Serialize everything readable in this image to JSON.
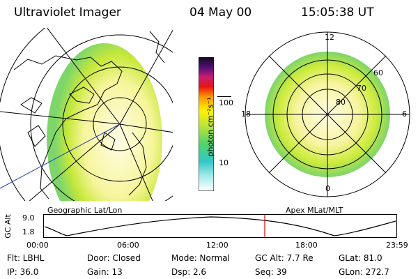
{
  "header": {
    "title": "Ultraviolet Imager",
    "date": "04 May 00",
    "time": "15:05:38 UT"
  },
  "left_panel": {
    "caption": "Geographic Lat/Lon"
  },
  "right_panel": {
    "caption": "Apex MLat/MLT",
    "mlt_labels": {
      "top": "12",
      "bottom": "0",
      "left": "18",
      "right": "6"
    },
    "mlat_labels": [
      "60",
      "70",
      "80"
    ]
  },
  "colorbar": {
    "unit_label": "photon cm⁻²s⁻¹",
    "ticks": [
      "100",
      "10"
    ]
  },
  "orbit_plot": {
    "ylabel": "GC Alt",
    "ticks_y": [
      "9.0",
      "1.8"
    ],
    "ticks_x": [
      "00:00",
      "06:00",
      "12:00",
      "18:00",
      "23:59"
    ]
  },
  "footer": {
    "row1": {
      "flt": "Flt: LBHL",
      "door": "Door: Closed",
      "mode": "Mode: Normal",
      "gcalt": "GC Alt: 7.7 Re",
      "glat": "GLat:  81.0"
    },
    "row2": {
      "ip": "IP: 36.0",
      "gain": "Gain: 13",
      "dsp": "Dsp:    2.6",
      "seq": "Seq: 39",
      "glon": "GLon: 272.7"
    }
  },
  "colors": {
    "ring_fill": "#d8ec3a",
    "center_fill": "#fdfbd8",
    "cursor": "#e00000"
  }
}
